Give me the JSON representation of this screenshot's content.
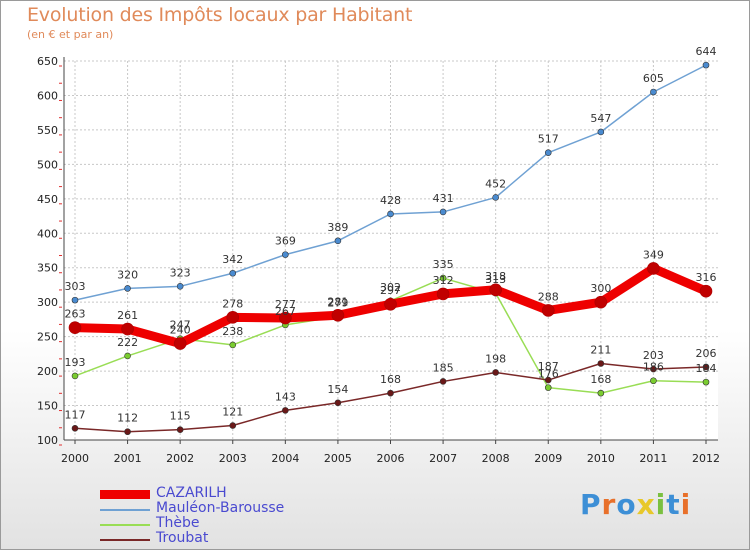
{
  "title": "Evolution des Impôts locaux par Habitant",
  "subtitle": "(en € et par an)",
  "logo": "Proxiti",
  "chart_data": {
    "type": "line",
    "x": [
      "2000",
      "2001",
      "2002",
      "2003",
      "2004",
      "2005",
      "2006",
      "2007",
      "2008",
      "2009",
      "2010",
      "2011",
      "2012"
    ],
    "ylim": [
      100,
      650
    ],
    "yticks": [
      100,
      150,
      200,
      250,
      300,
      350,
      400,
      450,
      500,
      550,
      600,
      650
    ],
    "grid": true,
    "legend_position": "bottom-left",
    "series": [
      {
        "name": "CAZARILH",
        "color": "#ee0000",
        "width": 9,
        "marker": "#c00000",
        "values": [
          263,
          261,
          240,
          278,
          277,
          281,
          297,
          312,
          318,
          288,
          300,
          349,
          316
        ]
      },
      {
        "name": "Mauléon-Barousse",
        "color": "#6fa1d3",
        "width": 1.5,
        "marker": "#4a8bd0",
        "values": [
          303,
          320,
          323,
          342,
          369,
          389,
          428,
          431,
          452,
          517,
          547,
          605,
          644
        ]
      },
      {
        "name": "Thèbe",
        "color": "#99dd55",
        "width": 1.5,
        "marker": "#7acc30",
        "values": [
          193,
          222,
          247,
          238,
          267,
          279,
          302,
          335,
          313,
          176,
          168,
          186,
          184
        ]
      },
      {
        "name": "Troubat",
        "color": "#7a2828",
        "width": 1.5,
        "marker": "#6a1818",
        "values": [
          117,
          112,
          115,
          121,
          143,
          154,
          168,
          185,
          198,
          187,
          211,
          203,
          206
        ]
      }
    ]
  }
}
